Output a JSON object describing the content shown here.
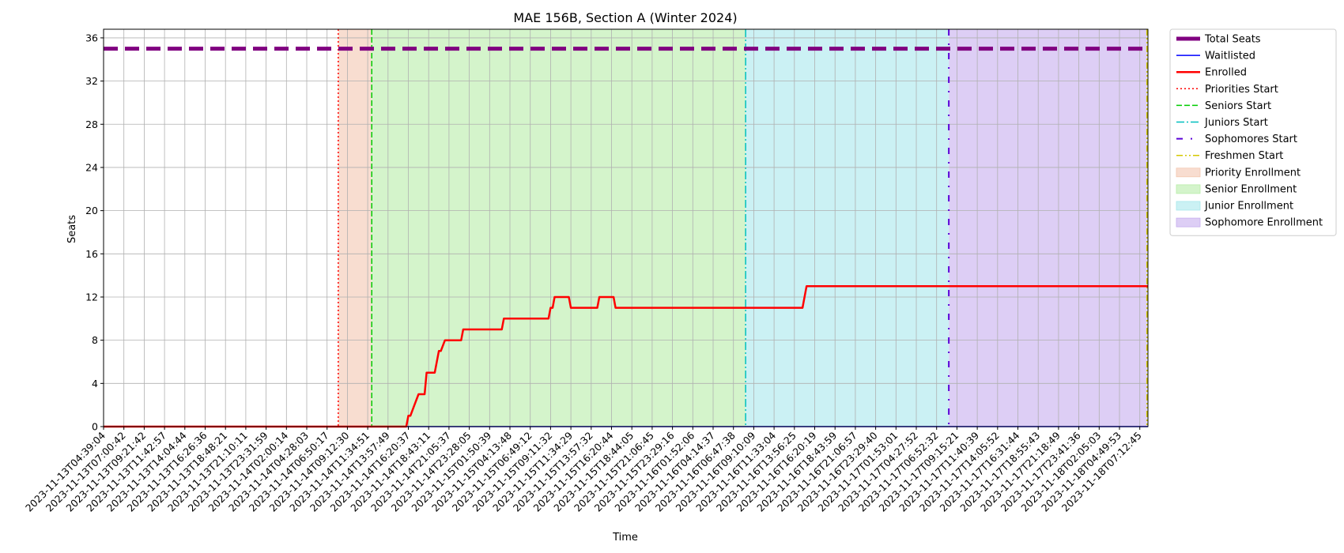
{
  "chart_data": {
    "type": "line",
    "title": "MAE 156B, Section A (Winter 2024)",
    "xlabel": "Time",
    "ylabel": "Seats",
    "ylim": [
      0,
      36.8
    ],
    "yticks": [
      0,
      4,
      8,
      12,
      16,
      20,
      24,
      28,
      32,
      36
    ],
    "grid": true,
    "legend_position": "outside-right-top",
    "x_ticks": [
      "2023-11-13T04:39:04",
      "2023-11-13T07:00:42",
      "2023-11-13T09:21:42",
      "2023-11-13T11:42:57",
      "2023-11-13T14:04:44",
      "2023-11-13T16:26:36",
      "2023-11-13T18:48:21",
      "2023-11-13T21:10:11",
      "2023-11-13T23:31:59",
      "2023-11-14T02:00:14",
      "2023-11-14T04:28:03",
      "2023-11-14T06:50:17",
      "2023-11-14T09:12:30",
      "2023-11-14T11:34:51",
      "2023-11-14T13:57:49",
      "2023-11-14T16:20:37",
      "2023-11-14T18:43:11",
      "2023-11-14T21:05:37",
      "2023-11-14T23:28:05",
      "2023-11-15T01:50:39",
      "2023-11-15T04:13:48",
      "2023-11-15T06:49:12",
      "2023-11-15T09:11:32",
      "2023-11-15T11:34:29",
      "2023-11-15T13:57:32",
      "2023-11-15T16:20:44",
      "2023-11-15T18:44:05",
      "2023-11-15T21:06:45",
      "2023-11-15T23:29:16",
      "2023-11-16T01:52:06",
      "2023-11-16T04:14:37",
      "2023-11-16T06:47:38",
      "2023-11-16T09:10:09",
      "2023-11-16T11:33:04",
      "2023-11-16T13:56:25",
      "2023-11-16T16:20:19",
      "2023-11-16T18:43:59",
      "2023-11-16T21:06:57",
      "2023-11-16T23:29:40",
      "2023-11-17T01:53:01",
      "2023-11-17T04:27:52",
      "2023-11-17T06:52:32",
      "2023-11-17T09:15:21",
      "2023-11-17T11:40:39",
      "2023-11-17T14:05:52",
      "2023-11-17T16:31:44",
      "2023-11-17T18:55:43",
      "2023-11-17T21:18:49",
      "2023-11-17T23:41:36",
      "2023-11-18T02:05:03",
      "2023-11-18T04:49:53",
      "2023-11-18T07:12:45"
    ],
    "x_range": [
      0,
      51.4
    ],
    "series": [
      {
        "name": "Total Seats",
        "color": "#800080",
        "style": "dashed-thick",
        "points": [
          [
            0,
            35
          ],
          [
            51.4,
            35
          ]
        ]
      },
      {
        "name": "Waitlisted",
        "color": "#0000ff",
        "style": "solid",
        "points": [
          [
            0,
            0
          ],
          [
            51.4,
            0
          ]
        ]
      },
      {
        "name": "Enrolled",
        "color": "#ff0000",
        "style": "solid-thick",
        "points": [
          [
            0,
            0
          ],
          [
            14.9,
            0
          ],
          [
            15.0,
            1
          ],
          [
            15.1,
            1
          ],
          [
            15.3,
            2
          ],
          [
            15.5,
            3
          ],
          [
            15.8,
            3
          ],
          [
            15.9,
            5
          ],
          [
            16.3,
            5
          ],
          [
            16.5,
            7
          ],
          [
            16.6,
            7
          ],
          [
            16.8,
            8
          ],
          [
            17.6,
            8
          ],
          [
            17.7,
            9
          ],
          [
            19.6,
            9
          ],
          [
            19.7,
            10
          ],
          [
            21.9,
            10
          ],
          [
            22.0,
            11
          ],
          [
            22.1,
            11
          ],
          [
            22.2,
            12
          ],
          [
            22.9,
            12
          ],
          [
            23.0,
            11
          ],
          [
            24.3,
            11
          ],
          [
            24.4,
            12
          ],
          [
            25.1,
            12
          ],
          [
            25.2,
            11
          ],
          [
            34.4,
            11
          ],
          [
            34.6,
            13
          ],
          [
            51.4,
            13
          ]
        ]
      }
    ],
    "markers": [
      {
        "name": "Priorities Start",
        "color": "#ff0000",
        "style": "dotted",
        "x": 11.55
      },
      {
        "name": "Seniors Start",
        "color": "#00cc00",
        "style": "dashed",
        "x": 13.2
      },
      {
        "name": "Juniors Start",
        "color": "#00bfbf",
        "style": "dashdot",
        "x": 31.6
      },
      {
        "name": "Sophomores Start",
        "color": "#5a00d8",
        "style": "loosely-dashdot",
        "x": 41.6
      },
      {
        "name": "Freshmen Start",
        "color": "#d4c800",
        "style": "dashdotdot",
        "x": 51.35
      }
    ],
    "regions": [
      {
        "name": "Priority Enrollment",
        "color": "#f3c7b0",
        "x0": 11.55,
        "x1": 13.2
      },
      {
        "name": "Senior Enrollment",
        "color": "#b8eda8",
        "x0": 13.2,
        "x1": 31.6
      },
      {
        "name": "Junior Enrollment",
        "color": "#a8e8ec",
        "x0": 31.6,
        "x1": 41.6
      },
      {
        "name": "Sophomore Enrollment",
        "color": "#c6aeee",
        "x0": 41.6,
        "x1": 51.35
      }
    ],
    "legend": [
      {
        "label": "Total Seats",
        "kind": "line",
        "color": "#800080",
        "style": "dashed-thick"
      },
      {
        "label": "Waitlisted",
        "kind": "line",
        "color": "#0000ff",
        "style": "solid"
      },
      {
        "label": "Enrolled",
        "kind": "line",
        "color": "#ff0000",
        "style": "solid-thick"
      },
      {
        "label": "Priorities Start",
        "kind": "line",
        "color": "#ff0000",
        "style": "dotted"
      },
      {
        "label": "Seniors Start",
        "kind": "line",
        "color": "#00cc00",
        "style": "dashed"
      },
      {
        "label": "Juniors Start",
        "kind": "line",
        "color": "#00bfbf",
        "style": "dashdot"
      },
      {
        "label": "Sophomores Start",
        "kind": "line",
        "color": "#5a00d8",
        "style": "loosely-dashdot"
      },
      {
        "label": "Freshmen Start",
        "kind": "line",
        "color": "#d4c800",
        "style": "dashdotdot"
      },
      {
        "label": "Priority Enrollment",
        "kind": "patch",
        "color": "#f3c7b0"
      },
      {
        "label": "Senior Enrollment",
        "kind": "patch",
        "color": "#b8eda8"
      },
      {
        "label": "Junior Enrollment",
        "kind": "patch",
        "color": "#a8e8ec"
      },
      {
        "label": "Sophomore Enrollment",
        "kind": "patch",
        "color": "#c6aeee"
      }
    ]
  }
}
